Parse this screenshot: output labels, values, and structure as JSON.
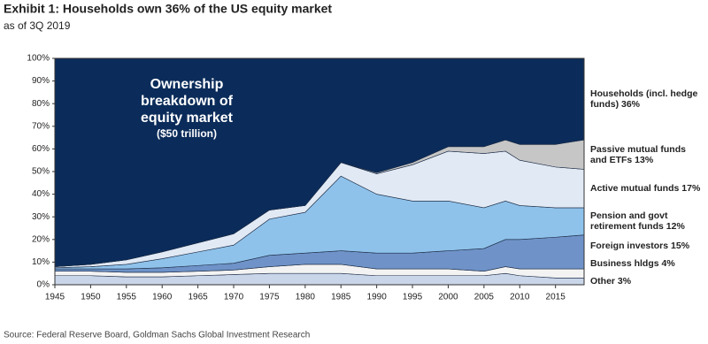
{
  "chart_data": {
    "type": "stacked-area",
    "title": "Exhibit 1: Households own 36% of the US equity market",
    "subtitle": "as of 3Q 2019",
    "annotation": "Ownership breakdown of equity market",
    "annotation_sub": "($50 trillion)",
    "source": "Source: Federal Reserve Board, Goldman Sachs Global Investment Research",
    "x": [
      1945,
      1950,
      1955,
      1960,
      1965,
      1970,
      1975,
      1980,
      1985,
      1990,
      1995,
      2000,
      2005,
      2008,
      2010,
      2015,
      2019
    ],
    "series": [
      {
        "name": "Other 3%",
        "color": "#c9d5e8",
        "values": [
          4,
          4,
          3.5,
          3.5,
          4,
          4.5,
          5,
          5,
          5,
          4,
          4,
          4,
          4,
          5,
          4,
          3,
          3
        ]
      },
      {
        "name": "Business hldgs 4%",
        "color": "#f3f3f3",
        "values": [
          2,
          2,
          2,
          2,
          2,
          2,
          3,
          4,
          4,
          3,
          3,
          3,
          2,
          3,
          3,
          4,
          4
        ]
      },
      {
        "name": "Foreign investors 15%",
        "color": "#6f93c8",
        "values": [
          1,
          1,
          1.5,
          2,
          2.5,
          3,
          5,
          5,
          6,
          7,
          7,
          8,
          10,
          12,
          13,
          14,
          15
        ]
      },
      {
        "name": "Pension and govt retirement funds 12%",
        "color": "#8fc2ea",
        "values": [
          0.5,
          1,
          2,
          4,
          6,
          8,
          16,
          18,
          33,
          26,
          23,
          22,
          18,
          17,
          15,
          13,
          12
        ]
      },
      {
        "name": "Active mutual funds 17%",
        "color": "#e1e9f4",
        "values": [
          0.5,
          1,
          2,
          3,
          4,
          5,
          4,
          3,
          6,
          9,
          16,
          22,
          24,
          22,
          20,
          18,
          17
        ]
      },
      {
        "name": "Passive mutual funds and ETFs 13%",
        "color": "#c6c6c6",
        "values": [
          0,
          0,
          0,
          0,
          0,
          0,
          0,
          0,
          0,
          0.5,
          1,
          2,
          3,
          5,
          7,
          10,
          13
        ]
      },
      {
        "name": "Households (incl. hedge funds) 36%",
        "color": "#0b2c5a",
        "values": [
          92,
          91,
          89,
          85.5,
          81.5,
          77.5,
          67,
          65,
          46,
          50.5,
          46,
          39,
          39,
          36,
          38,
          38,
          36
        ]
      }
    ],
    "xlim": [
      1945,
      2019
    ],
    "xticks": [
      1945,
      1950,
      1955,
      1960,
      1965,
      1970,
      1975,
      1980,
      1985,
      1990,
      1995,
      2000,
      2005,
      2010,
      2015
    ],
    "ylim": [
      0,
      100
    ],
    "yticks": [
      {
        "value": 0,
        "label": "0%"
      },
      {
        "value": 10,
        "label": "10%"
      },
      {
        "value": 20,
        "label": "20%"
      },
      {
        "value": 30,
        "label": "30%"
      },
      {
        "value": 40,
        "label": "40%"
      },
      {
        "value": 50,
        "label": "50%"
      },
      {
        "value": 60,
        "label": "60%"
      },
      {
        "value": 70,
        "label": "70%"
      },
      {
        "value": 80,
        "label": "80%"
      },
      {
        "value": 90,
        "label": "90%"
      },
      {
        "value": 100,
        "label": "100%"
      }
    ]
  }
}
